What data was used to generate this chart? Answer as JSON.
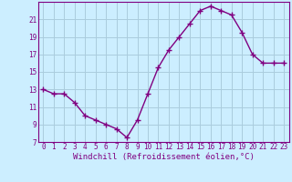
{
  "x": [
    0,
    1,
    2,
    3,
    4,
    5,
    6,
    7,
    8,
    9,
    10,
    11,
    12,
    13,
    14,
    15,
    16,
    17,
    18,
    19,
    20,
    21,
    22,
    23
  ],
  "y": [
    13,
    12.5,
    12.5,
    11.5,
    10,
    9.5,
    9,
    8.5,
    7.5,
    9.5,
    12.5,
    15.5,
    17.5,
    19,
    20.5,
    22,
    22.5,
    22,
    21.5,
    19.5,
    17,
    16,
    16,
    16
  ],
  "line_color": "#800080",
  "marker": "+",
  "marker_size": 4,
  "marker_linewidth": 1.0,
  "line_width": 1.0,
  "background_color": "#cceeff",
  "grid_color": "#aaccdd",
  "xlabel": "Windchill (Refroidissement éolien,°C)",
  "xlabel_color": "#800080",
  "ytick_values": [
    7,
    9,
    11,
    13,
    15,
    17,
    19,
    21
  ],
  "ylim": [
    7,
    23
  ],
  "xlim": [
    -0.5,
    23.5
  ],
  "xtick_values": [
    0,
    1,
    2,
    3,
    4,
    5,
    6,
    7,
    8,
    9,
    10,
    11,
    12,
    13,
    14,
    15,
    16,
    17,
    18,
    19,
    20,
    21,
    22,
    23
  ],
  "xtick_labels": [
    "0",
    "1",
    "2",
    "3",
    "4",
    "5",
    "6",
    "7",
    "8",
    "9",
    "10",
    "11",
    "12",
    "13",
    "14",
    "15",
    "16",
    "17",
    "18",
    "19",
    "20",
    "21",
    "22",
    "23"
  ],
  "tick_color": "#800080",
  "spine_color": "#800080",
  "tick_fontsize": 5.5,
  "xlabel_fontsize": 6.5
}
